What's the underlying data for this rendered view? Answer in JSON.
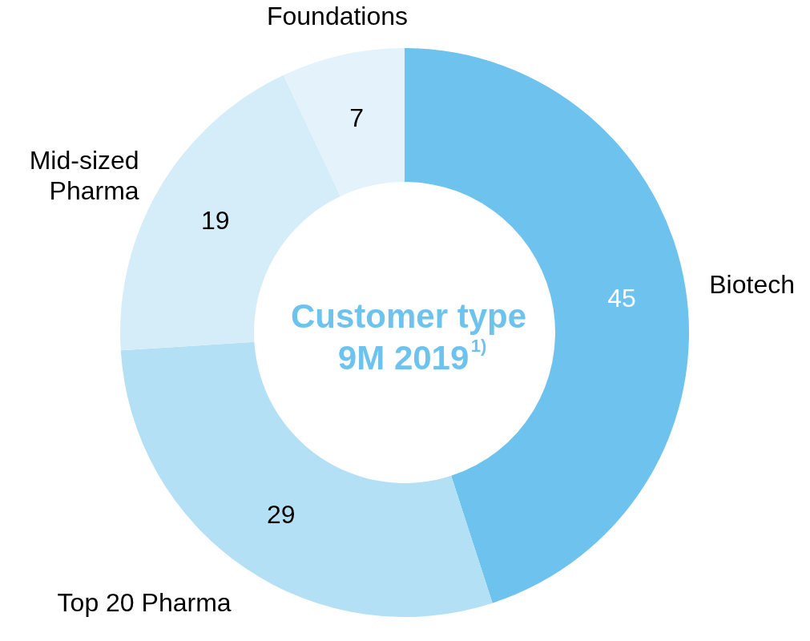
{
  "chart_data": {
    "type": "donut",
    "title": "Customer type 9M 2019$^{1)}$",
    "categories": [
      "Biotech",
      "Top 20 Pharma",
      "Mid-sized\nPharma",
      "Foundations"
    ],
    "values": [
      45,
      29,
      19,
      7
    ],
    "colors": [
      "#6ec3ee",
      "#b3e0f5",
      "#d5edf9",
      "#e3f2fb"
    ],
    "data_labels": true,
    "legend": false
  }
}
